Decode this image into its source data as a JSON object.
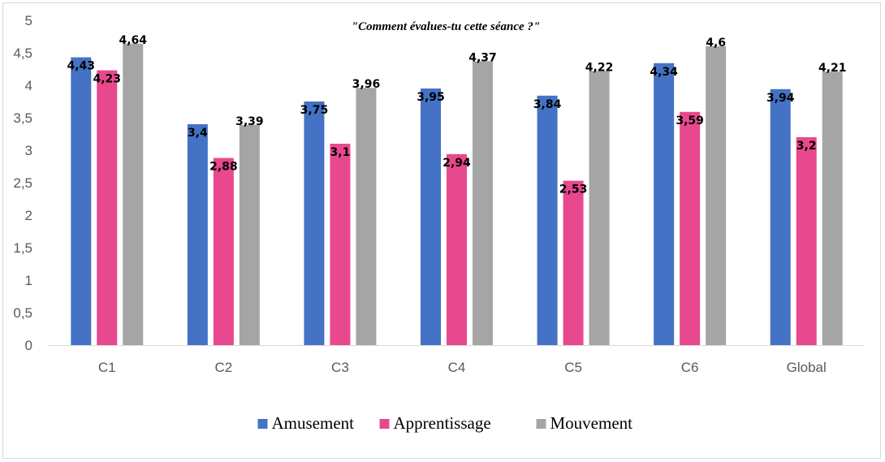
{
  "chart_data": {
    "type": "bar",
    "title": "\"Comment évalues-tu cette séance ?\"",
    "xlabel": "",
    "ylabel": "",
    "ylim": [
      0,
      5
    ],
    "yticks": [
      "0",
      "0,5",
      "1",
      "1,5",
      "2",
      "2,5",
      "3",
      "3,5",
      "4",
      "4,5",
      "5"
    ],
    "ytick_values": [
      0,
      0.5,
      1,
      1.5,
      2,
      2.5,
      3,
      3.5,
      4,
      4.5,
      5
    ],
    "categories": [
      "C1",
      "C2",
      "C3",
      "C4",
      "C5",
      "C6",
      "Global"
    ],
    "series": [
      {
        "name": "Amusement",
        "color": "#4472c4",
        "values": [
          4.43,
          3.4,
          3.75,
          3.95,
          3.84,
          4.34,
          3.94
        ],
        "labels": [
          "4,43",
          "3,4",
          "3,75",
          "3,95",
          "3,84",
          "4,34",
          "3,94"
        ]
      },
      {
        "name": "Apprentissage",
        "color": "#e8488e",
        "values": [
          4.23,
          2.88,
          3.1,
          2.94,
          2.53,
          3.59,
          3.2
        ],
        "labels": [
          "4,23",
          "2,88",
          "3,1",
          "2,94",
          "2,53",
          "3,59",
          "3,2"
        ]
      },
      {
        "name": "Mouvement",
        "color": "#a5a5a5",
        "values": [
          4.64,
          3.39,
          3.96,
          4.37,
          4.22,
          4.6,
          4.21
        ],
        "labels": [
          "4,64",
          "3,39",
          "3,96",
          "4,37",
          "4,22",
          "4,6",
          "4,21"
        ]
      }
    ],
    "grid": false,
    "legend_position": "bottom"
  }
}
